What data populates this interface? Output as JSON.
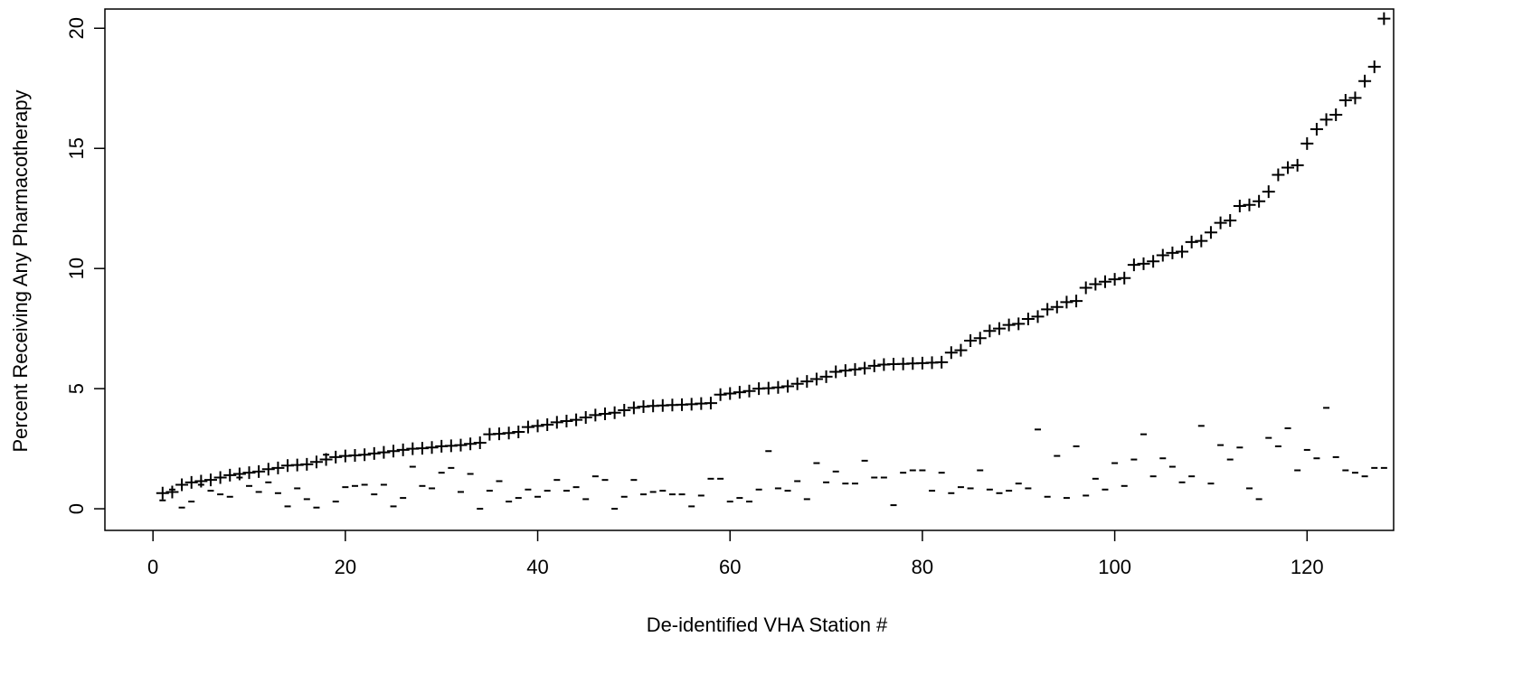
{
  "chart_data": {
    "type": "scatter",
    "title": "",
    "xlabel": "De-identified VHA Station #",
    "ylabel": "Percent Receiving Any Pharmacotherapy",
    "xlim": [
      -5,
      129
    ],
    "ylim": [
      -0.9,
      20.8
    ],
    "xticks": [
      0,
      20,
      40,
      60,
      80,
      100,
      120
    ],
    "yticks": [
      0,
      5,
      10,
      15,
      20
    ],
    "grid": false,
    "legend": "none",
    "series": [
      {
        "marker": "+",
        "x": [
          1,
          2,
          3,
          4,
          5,
          6,
          7,
          8,
          9,
          10,
          11,
          12,
          13,
          14,
          15,
          16,
          17,
          18,
          19,
          20,
          21,
          22,
          23,
          24,
          25,
          26,
          27,
          28,
          29,
          30,
          31,
          32,
          33,
          34,
          35,
          36,
          37,
          38,
          39,
          40,
          41,
          42,
          43,
          44,
          45,
          46,
          47,
          48,
          49,
          50,
          51,
          52,
          53,
          54,
          55,
          56,
          57,
          58,
          59,
          60,
          61,
          62,
          63,
          64,
          65,
          66,
          67,
          68,
          69,
          70,
          71,
          72,
          73,
          74,
          75,
          76,
          77,
          78,
          79,
          80,
          81,
          82,
          83,
          84,
          85,
          86,
          87,
          88,
          89,
          90,
          91,
          92,
          93,
          94,
          95,
          96,
          97,
          98,
          99,
          100,
          101,
          102,
          103,
          104,
          105,
          106,
          107,
          108,
          109,
          110,
          111,
          112,
          113,
          114,
          115,
          116,
          117,
          118,
          119,
          120,
          121,
          122,
          123,
          124,
          125,
          126,
          127,
          128
        ],
        "y": [
          0.65,
          0.7,
          1.0,
          1.1,
          1.15,
          1.2,
          1.3,
          1.4,
          1.45,
          1.5,
          1.55,
          1.65,
          1.7,
          1.8,
          1.82,
          1.85,
          1.95,
          2.05,
          2.15,
          2.2,
          2.22,
          2.25,
          2.3,
          2.35,
          2.4,
          2.45,
          2.5,
          2.52,
          2.55,
          2.6,
          2.62,
          2.65,
          2.7,
          2.75,
          3.1,
          3.12,
          3.15,
          3.2,
          3.4,
          3.45,
          3.5,
          3.6,
          3.65,
          3.7,
          3.8,
          3.9,
          3.95,
          4.0,
          4.1,
          4.2,
          4.25,
          4.28,
          4.3,
          4.32,
          4.33,
          4.35,
          4.38,
          4.4,
          4.75,
          4.8,
          4.85,
          4.9,
          5.0,
          5.02,
          5.05,
          5.1,
          5.2,
          5.3,
          5.4,
          5.5,
          5.7,
          5.75,
          5.8,
          5.85,
          5.95,
          6.0,
          6.02,
          6.03,
          6.05,
          6.06,
          6.08,
          6.1,
          6.5,
          6.6,
          7.0,
          7.1,
          7.4,
          7.5,
          7.65,
          7.7,
          7.9,
          8.0,
          8.3,
          8.4,
          8.6,
          8.65,
          9.2,
          9.35,
          9.45,
          9.55,
          9.6,
          10.15,
          10.2,
          10.3,
          10.55,
          10.65,
          10.7,
          11.1,
          11.15,
          11.5,
          11.9,
          12.0,
          12.6,
          12.65,
          12.8,
          13.2,
          13.9,
          14.2,
          14.3,
          15.2,
          15.8,
          16.2,
          16.4,
          17.0,
          17.1,
          17.8,
          18.4,
          20.4
        ]
      },
      {
        "marker": "-",
        "x": [
          1,
          2,
          3,
          4,
          5,
          6,
          7,
          8,
          9,
          10,
          11,
          12,
          13,
          14,
          15,
          16,
          17,
          18,
          19,
          20,
          21,
          22,
          23,
          24,
          25,
          26,
          27,
          28,
          29,
          30,
          31,
          32,
          33,
          34,
          35,
          36,
          37,
          38,
          39,
          40,
          41,
          42,
          43,
          44,
          45,
          46,
          47,
          48,
          49,
          50,
          51,
          52,
          53,
          54,
          55,
          56,
          57,
          58,
          59,
          60,
          61,
          62,
          63,
          64,
          65,
          66,
          67,
          68,
          69,
          70,
          71,
          72,
          73,
          74,
          75,
          76,
          77,
          78,
          79,
          80,
          81,
          82,
          83,
          84,
          85,
          86,
          87,
          88,
          89,
          90,
          91,
          92,
          93,
          94,
          95,
          96,
          97,
          98,
          99,
          100,
          101,
          102,
          103,
          104,
          105,
          106,
          107,
          108,
          109,
          110,
          111,
          112,
          113,
          114,
          115,
          116,
          117,
          118,
          119,
          120,
          121,
          122,
          123,
          124,
          125,
          126,
          127,
          128
        ],
        "y": [
          0.35,
          0.8,
          0.05,
          0.3,
          1.0,
          0.75,
          0.6,
          0.5,
          1.3,
          0.95,
          0.7,
          1.1,
          0.65,
          0.1,
          0.85,
          0.4,
          0.05,
          2.25,
          0.3,
          0.9,
          0.95,
          1.0,
          0.6,
          1.0,
          0.1,
          0.45,
          1.75,
          0.95,
          0.85,
          1.5,
          1.7,
          0.7,
          1.45,
          0.0,
          0.75,
          1.15,
          0.3,
          0.45,
          0.8,
          0.5,
          0.75,
          1.2,
          0.75,
          0.9,
          0.4,
          1.35,
          1.2,
          0.0,
          0.5,
          1.2,
          0.6,
          0.7,
          0.75,
          0.6,
          0.6,
          0.1,
          0.55,
          1.25,
          1.25,
          0.3,
          0.45,
          0.3,
          0.8,
          2.4,
          0.85,
          0.75,
          1.15,
          0.4,
          1.9,
          1.1,
          1.55,
          1.05,
          1.05,
          2.0,
          1.3,
          1.3,
          0.15,
          1.5,
          1.6,
          1.6,
          0.75,
          1.5,
          0.65,
          0.9,
          0.85,
          1.6,
          0.8,
          0.65,
          0.75,
          1.05,
          0.85,
          3.3,
          0.5,
          2.2,
          0.45,
          2.6,
          0.55,
          1.25,
          0.8,
          1.9,
          0.95,
          2.05,
          3.1,
          1.35,
          2.1,
          1.75,
          1.1,
          1.35,
          3.45,
          1.05,
          2.65,
          2.05,
          2.55,
          0.85,
          0.4,
          2.95,
          2.6,
          3.35,
          1.6,
          2.45,
          2.1,
          4.2,
          2.15,
          1.6,
          1.5,
          1.35,
          1.7,
          1.7
        ]
      }
    ]
  }
}
